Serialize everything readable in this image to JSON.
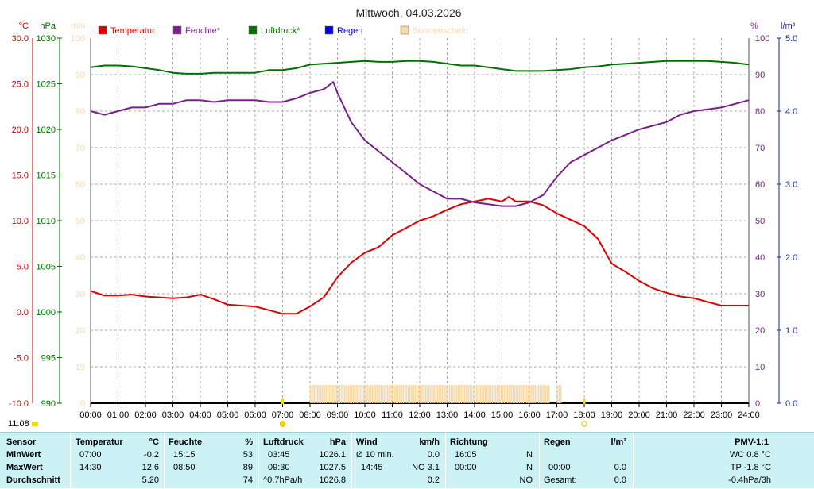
{
  "chart_data": {
    "type": "line",
    "title": "Mittwoch, 04.03.2026",
    "left_axes": [
      {
        "unit": "°C",
        "min": -10,
        "max": 30,
        "step": 5,
        "color": "#cc0000",
        "ticks": [
          "30.0",
          "25.0",
          "20.0",
          "15.0",
          "10.0",
          "5.0",
          "0.0",
          "-5.0",
          "-10.0"
        ]
      },
      {
        "unit": "hPa",
        "min": 990,
        "max": 1030,
        "step": 5,
        "color": "#007000",
        "ticks": [
          "1030",
          "1025",
          "1020",
          "1015",
          "1010",
          "1005",
          "1000",
          "995",
          "990"
        ]
      },
      {
        "unit": "min",
        "min": 0,
        "max": 100,
        "step": 10,
        "color": "#f5d9a6",
        "ticks": [
          "100",
          "90",
          "80",
          "70",
          "60",
          "50",
          "40",
          "30",
          "20",
          "10",
          "0"
        ]
      }
    ],
    "right_axes": [
      {
        "unit": "%",
        "min": 0,
        "max": 100,
        "step": 10,
        "color": "#7a1f8a",
        "ticks": [
          "100",
          "90",
          "80",
          "70",
          "60",
          "50",
          "40",
          "30",
          "20",
          "10",
          "0"
        ]
      },
      {
        "unit": "l/m²",
        "min": 0,
        "max": 5,
        "step": 1,
        "color": "#1a2a9a",
        "ticks": [
          "5.0",
          "4.0",
          "3.0",
          "2.0",
          "1.0",
          "0.0"
        ]
      }
    ],
    "x_ticks": [
      "00:00",
      "01:00",
      "02:00",
      "03:00",
      "04:00",
      "05:00",
      "06:00",
      "07:00",
      "08:00",
      "09:00",
      "10:00",
      "11:00",
      "12:00",
      "13:00",
      "14:00",
      "15:00",
      "16:00",
      "17:00",
      "18:00",
      "19:00",
      "20:00",
      "21:00",
      "22:00",
      "23:00",
      "24:00"
    ],
    "legend": [
      {
        "label": "Temperatur",
        "color": "#dd0000"
      },
      {
        "label": "Feuchte*",
        "color": "#7a1f8a"
      },
      {
        "label": "Luftdruck*",
        "color": "#007000"
      },
      {
        "label": "Regen",
        "color": "#0000ee"
      },
      {
        "label": "Sonnenschein",
        "color": "#f5d9a6"
      }
    ],
    "grid": true,
    "series": [
      {
        "name": "Temperatur",
        "axis": "°C",
        "color": "#dd0000",
        "x": [
          0,
          0.5,
          1,
          1.5,
          2,
          2.5,
          3,
          3.5,
          4,
          4.5,
          5,
          5.5,
          6,
          6.5,
          7,
          7.5,
          8,
          8.5,
          9,
          9.25,
          9.5,
          10,
          10.5,
          11,
          11.5,
          12,
          12.5,
          13,
          13.5,
          14,
          14.5,
          15,
          15.25,
          15.5,
          16,
          16.5,
          17,
          17.5,
          18,
          18.5,
          19,
          19.5,
          20,
          20.5,
          21,
          21.5,
          22,
          22.5,
          23,
          23.5,
          24
        ],
        "y": [
          2.3,
          1.8,
          1.8,
          1.9,
          1.7,
          1.6,
          1.5,
          1.6,
          1.9,
          1.4,
          0.8,
          0.7,
          0.6,
          0.2,
          -0.2,
          -0.2,
          0.6,
          1.6,
          3.8,
          4.6,
          5.4,
          6.5,
          7.1,
          8.4,
          9.2,
          10.0,
          10.5,
          11.2,
          11.8,
          12.1,
          12.4,
          12.1,
          12.6,
          12.1,
          12.1,
          11.7,
          10.8,
          10.1,
          9.4,
          8.0,
          5.3,
          4.4,
          3.4,
          2.6,
          2.1,
          1.7,
          1.5,
          1.1,
          0.7,
          0.7,
          0.7
        ]
      },
      {
        "name": "Feuchte*",
        "axis": "%",
        "color": "#7a1f8a",
        "x": [
          0,
          0.5,
          1,
          1.5,
          2,
          2.5,
          3,
          3.5,
          4,
          4.5,
          5,
          5.5,
          6,
          6.5,
          7,
          7.5,
          8,
          8.5,
          8.85,
          9,
          9.5,
          10,
          10.5,
          11,
          11.5,
          12,
          12.5,
          13,
          13.5,
          14,
          14.5,
          15,
          15.5,
          16,
          16.5,
          17,
          17.5,
          18,
          18.5,
          19,
          19.5,
          20,
          20.5,
          21,
          21.5,
          22,
          22.5,
          23,
          23.5,
          24
        ],
        "y": [
          80,
          79,
          80,
          81,
          81,
          82,
          82,
          83,
          83,
          82.5,
          83,
          83,
          83,
          82.5,
          82.5,
          83.5,
          85,
          86,
          88,
          85,
          77,
          72,
          69,
          66,
          63,
          60,
          58,
          56,
          56,
          55,
          54.5,
          54,
          54,
          55,
          57,
          62,
          66,
          68,
          70,
          72,
          73.5,
          75,
          76,
          77,
          79,
          80,
          80.5,
          81,
          82,
          83
        ]
      },
      {
        "name": "Luftdruck*",
        "axis": "hPa",
        "color": "#007000",
        "x": [
          0,
          0.5,
          1,
          1.5,
          2,
          2.5,
          3,
          3.5,
          4,
          4.5,
          5,
          5.5,
          6,
          6.5,
          7,
          7.5,
          8,
          8.5,
          9,
          9.5,
          10,
          10.5,
          11,
          11.5,
          12,
          12.5,
          13,
          13.5,
          14,
          14.5,
          15,
          15.5,
          16,
          16.5,
          17,
          17.5,
          18,
          18.5,
          19,
          19.5,
          20,
          20.5,
          21,
          21.5,
          22,
          22.5,
          23,
          23.5,
          24
        ],
        "y": [
          1026.8,
          1027.0,
          1027.0,
          1026.9,
          1026.7,
          1026.5,
          1026.2,
          1026.1,
          1026.1,
          1026.2,
          1026.2,
          1026.2,
          1026.2,
          1026.5,
          1026.5,
          1026.7,
          1027.1,
          1027.2,
          1027.3,
          1027.4,
          1027.5,
          1027.4,
          1027.4,
          1027.5,
          1027.5,
          1027.4,
          1027.2,
          1027.0,
          1027.0,
          1026.8,
          1026.6,
          1026.4,
          1026.4,
          1026.4,
          1026.5,
          1026.6,
          1026.8,
          1026.9,
          1027.1,
          1027.2,
          1027.3,
          1027.4,
          1027.5,
          1027.5,
          1027.5,
          1027.5,
          1027.4,
          1027.3,
          1027.1
        ]
      }
    ],
    "sunshine": {
      "from": 8.0,
      "to": 16.75,
      "gap_to": 17.0,
      "end": 17.15,
      "value": 5
    },
    "rain": [],
    "markers": [
      {
        "at": 7.0,
        "symbol": "sunrise"
      },
      {
        "at": 18.0,
        "symbol": "sunset"
      }
    ],
    "time_label": "11:08"
  },
  "stats": {
    "headers": {
      "sensor": "Sensor",
      "temp": "Temperatur",
      "temp_unit": "°C",
      "hum": "Feuchte",
      "hum_unit": "%",
      "press": "Luftdruck",
      "press_unit": "hPa",
      "wind": "Wind",
      "wind_unit": "km/h",
      "dir": "Richtung",
      "rain": "Regen",
      "rain_unit": "l/m²",
      "pmv": "PMV-1:1"
    },
    "rows": [
      {
        "label": "MinWert",
        "temp_time": "07:00",
        "temp_val": "-0.2",
        "hum_time": "15:15",
        "hum_val": "53",
        "press_time": "03:45",
        "press_val": "1026.1",
        "wind_label": "Ø 10 min.",
        "wind_val": "0.0",
        "dir_time": "16:05",
        "dir_val": "N",
        "rain_time": "",
        "rain_val": "",
        "pmv": "WC 0.8 °C"
      },
      {
        "label": "MaxWert",
        "temp_time": "14:30",
        "temp_val": "12.6",
        "hum_time": "08:50",
        "hum_val": "89",
        "press_time": "09:30",
        "press_val": "1027.5",
        "wind_label": "14:45",
        "wind_val": "NO 3.1",
        "dir_time": "00:00",
        "dir_val": "N",
        "rain_time": "00:00",
        "rain_val": "0.0",
        "pmv": "TP -1.8 °C"
      },
      {
        "label": "Durchschnitt",
        "temp_time": "",
        "temp_val": "5.20",
        "hum_time": "",
        "hum_val": "74",
        "press_time": "^0.7hPa/h",
        "press_val": "1026.8",
        "wind_label": "",
        "wind_val": "0.2",
        "dir_time": "",
        "dir_val": "NO",
        "rain_time": "Gesamt:",
        "rain_val": "0.0",
        "pmv": "-0.4hPa/3h"
      }
    ]
  }
}
